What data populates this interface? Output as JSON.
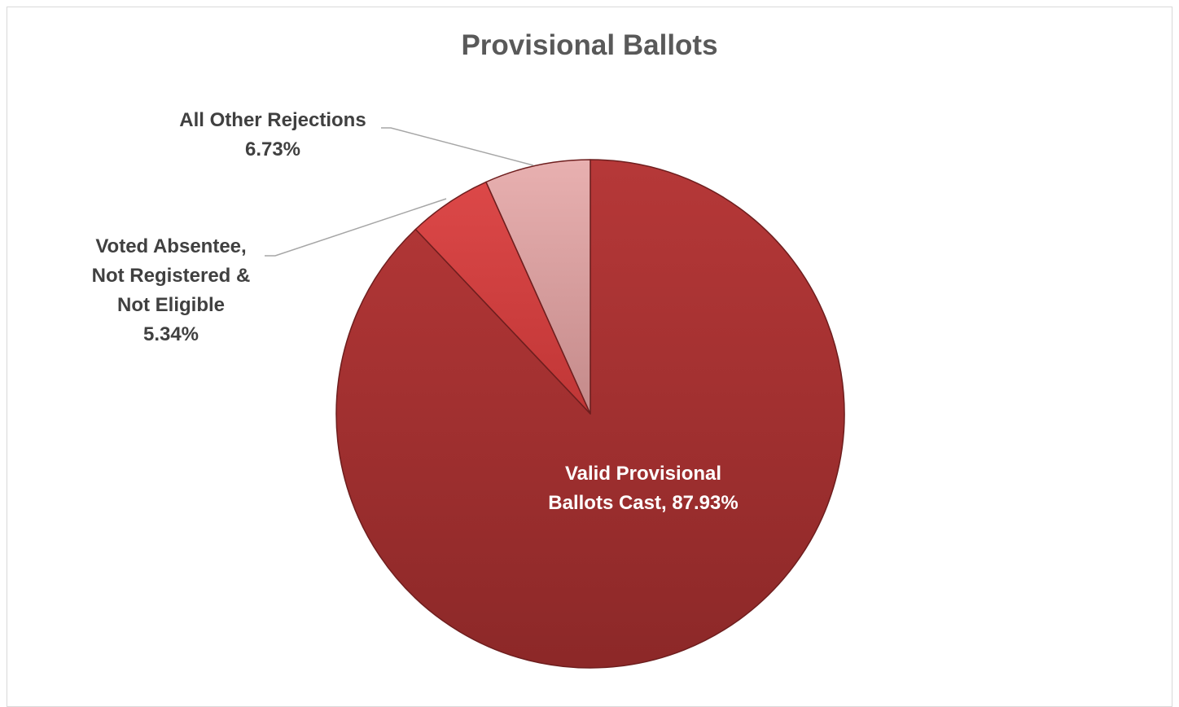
{
  "chart_data": {
    "type": "pie",
    "title": "Provisional Ballots",
    "slices": [
      {
        "label": "Valid Provisional Ballots Cast",
        "value": 87.93,
        "display": "Valid Provisional\nBallots Cast, 87.93%",
        "color": "#a83232"
      },
      {
        "label": "Voted Absentee, Not Registered & Not Eligible",
        "value": 5.34,
        "display": "Voted Absentee,\nNot Registered &\nNot Eligible\n5.34%",
        "color": "#d04040"
      },
      {
        "label": "All Other Rejections",
        "value": 6.73,
        "display": "All Other Rejections\n6.73%",
        "color": "#dc9e9e"
      }
    ]
  }
}
